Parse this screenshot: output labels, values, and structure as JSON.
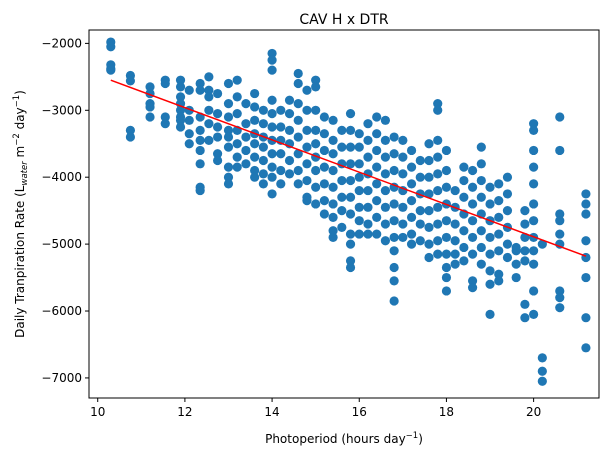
{
  "chart_data": {
    "type": "scatter",
    "title": "CAV H x DTR",
    "xlabel": {
      "main": "Photoperiod (hours day",
      "sup": "−1",
      "tail": ")"
    },
    "ylabel": {
      "part1": "Daily Tranpiration Rate (L",
      "sub": "water",
      "part2": " m",
      "sup1": "−2",
      "part3": " day",
      "sup2": "−1",
      "part4": ")"
    },
    "xlim": [
      9.8,
      21.5
    ],
    "ylim": [
      -7300,
      -1800
    ],
    "xticks": [
      10,
      12,
      14,
      16,
      18,
      20
    ],
    "xtick_labels": [
      "10",
      "12",
      "14",
      "16",
      "18",
      "20"
    ],
    "yticks": [
      -7000,
      -6000,
      -5000,
      -4000,
      -3000,
      -2000
    ],
    "ytick_labels": [
      "−7000",
      "−6000",
      "−5000",
      "−4000",
      "−3000",
      "−2000"
    ],
    "grid": false,
    "legend": "none",
    "point_color": "#1f77b4",
    "line_color": "#ff0000",
    "fit_line": {
      "x": [
        10.3,
        21.2
      ],
      "y": [
        -2550,
        -5180
      ]
    },
    "points": [
      [
        10.3,
        -1980
      ],
      [
        10.3,
        -2050
      ],
      [
        10.3,
        -2320
      ],
      [
        10.3,
        -2380
      ],
      [
        10.3,
        -2400
      ],
      [
        10.75,
        -2480
      ],
      [
        10.75,
        -2560
      ],
      [
        10.75,
        -3300
      ],
      [
        10.75,
        -3400
      ],
      [
        11.2,
        -2650
      ],
      [
        11.2,
        -2750
      ],
      [
        11.2,
        -2900
      ],
      [
        11.2,
        -2950
      ],
      [
        11.2,
        -3100
      ],
      [
        11.55,
        -2550
      ],
      [
        11.55,
        -2600
      ],
      [
        11.55,
        -3100
      ],
      [
        11.55,
        -3200
      ],
      [
        11.9,
        -2550
      ],
      [
        11.9,
        -2650
      ],
      [
        11.9,
        -2800
      ],
      [
        11.9,
        -2900
      ],
      [
        11.9,
        -3000
      ],
      [
        11.9,
        -3100
      ],
      [
        11.9,
        -3150
      ],
      [
        11.9,
        -3250
      ],
      [
        12.1,
        -2700
      ],
      [
        12.1,
        -3000
      ],
      [
        12.1,
        -3150
      ],
      [
        12.1,
        -3350
      ],
      [
        12.1,
        -3500
      ],
      [
        12.35,
        -2600
      ],
      [
        12.35,
        -2700
      ],
      [
        12.35,
        -3100
      ],
      [
        12.35,
        -3300
      ],
      [
        12.35,
        -3450
      ],
      [
        12.35,
        -3600
      ],
      [
        12.35,
        -3800
      ],
      [
        12.35,
        -4150
      ],
      [
        12.35,
        -4200
      ],
      [
        12.55,
        -2500
      ],
      [
        12.55,
        -2700
      ],
      [
        12.55,
        -2800
      ],
      [
        12.55,
        -3000
      ],
      [
        12.55,
        -3200
      ],
      [
        12.55,
        -3450
      ],
      [
        12.75,
        -2750
      ],
      [
        12.75,
        -3050
      ],
      [
        12.75,
        -3250
      ],
      [
        12.75,
        -3400
      ],
      [
        12.75,
        -3650
      ],
      [
        12.75,
        -3750
      ],
      [
        13.0,
        -2600
      ],
      [
        13.0,
        -2900
      ],
      [
        13.0,
        -3100
      ],
      [
        13.0,
        -3300
      ],
      [
        13.0,
        -3400
      ],
      [
        13.0,
        -3550
      ],
      [
        13.0,
        -3850
      ],
      [
        13.0,
        -4000
      ],
      [
        13.0,
        -4100
      ],
      [
        13.2,
        -2550
      ],
      [
        13.2,
        -2800
      ],
      [
        13.2,
        -3050
      ],
      [
        13.2,
        -3300
      ],
      [
        13.2,
        -3500
      ],
      [
        13.2,
        -3700
      ],
      [
        13.2,
        -3850
      ],
      [
        13.4,
        -2900
      ],
      [
        13.4,
        -3200
      ],
      [
        13.4,
        -3400
      ],
      [
        13.4,
        -3600
      ],
      [
        13.4,
        -3800
      ],
      [
        13.6,
        -2750
      ],
      [
        13.6,
        -2950
      ],
      [
        13.6,
        -3150
      ],
      [
        13.6,
        -3350
      ],
      [
        13.6,
        -3500
      ],
      [
        13.6,
        -3700
      ],
      [
        13.6,
        -3900
      ],
      [
        13.6,
        -4000
      ],
      [
        13.8,
        -3000
      ],
      [
        13.8,
        -3200
      ],
      [
        13.8,
        -3400
      ],
      [
        13.8,
        -3550
      ],
      [
        13.8,
        -3750
      ],
      [
        13.8,
        -3950
      ],
      [
        13.8,
        -4100
      ],
      [
        14.0,
        -2150
      ],
      [
        14.0,
        -2250
      ],
      [
        14.0,
        -2400
      ],
      [
        14.0,
        -2850
      ],
      [
        14.0,
        -3050
      ],
      [
        14.0,
        -3250
      ],
      [
        14.0,
        -3450
      ],
      [
        14.0,
        -3650
      ],
      [
        14.0,
        -3850
      ],
      [
        14.0,
        -4000
      ],
      [
        14.0,
        -4250
      ],
      [
        14.2,
        -3000
      ],
      [
        14.2,
        -3250
      ],
      [
        14.2,
        -3450
      ],
      [
        14.2,
        -3650
      ],
      [
        14.2,
        -3900
      ],
      [
        14.2,
        -4100
      ],
      [
        14.4,
        -2850
      ],
      [
        14.4,
        -3050
      ],
      [
        14.4,
        -3300
      ],
      [
        14.4,
        -3500
      ],
      [
        14.4,
        -3750
      ],
      [
        14.4,
        -3950
      ],
      [
        14.6,
        -2450
      ],
      [
        14.6,
        -2600
      ],
      [
        14.6,
        -2900
      ],
      [
        14.6,
        -3150
      ],
      [
        14.6,
        -3400
      ],
      [
        14.6,
        -3650
      ],
      [
        14.6,
        -3900
      ],
      [
        14.6,
        -4100
      ],
      [
        14.8,
        -2700
      ],
      [
        14.8,
        -3000
      ],
      [
        14.8,
        -3300
      ],
      [
        14.8,
        -3550
      ],
      [
        14.8,
        -3800
      ],
      [
        14.8,
        -4050
      ],
      [
        14.8,
        -4300
      ],
      [
        14.8,
        -4350
      ],
      [
        15.0,
        -2550
      ],
      [
        15.0,
        -2650
      ],
      [
        15.0,
        -3000
      ],
      [
        15.0,
        -3300
      ],
      [
        15.0,
        -3500
      ],
      [
        15.0,
        -3700
      ],
      [
        15.0,
        -3900
      ],
      [
        15.0,
        -4150
      ],
      [
        15.0,
        -4400
      ],
      [
        15.2,
        -3100
      ],
      [
        15.2,
        -3350
      ],
      [
        15.2,
        -3600
      ],
      [
        15.2,
        -3850
      ],
      [
        15.2,
        -4100
      ],
      [
        15.2,
        -4350
      ],
      [
        15.2,
        -4550
      ],
      [
        15.4,
        -3150
      ],
      [
        15.4,
        -3450
      ],
      [
        15.4,
        -3650
      ],
      [
        15.4,
        -3900
      ],
      [
        15.4,
        -4150
      ],
      [
        15.4,
        -4400
      ],
      [
        15.4,
        -4600
      ],
      [
        15.4,
        -4800
      ],
      [
        15.4,
        -4900
      ],
      [
        15.6,
        -3300
      ],
      [
        15.6,
        -3550
      ],
      [
        15.6,
        -3800
      ],
      [
        15.6,
        -4050
      ],
      [
        15.6,
        -4300
      ],
      [
        15.6,
        -4500
      ],
      [
        15.6,
        -4750
      ],
      [
        15.8,
        -3050
      ],
      [
        15.8,
        -3300
      ],
      [
        15.8,
        -3550
      ],
      [
        15.8,
        -3800
      ],
      [
        15.8,
        -4050
      ],
      [
        15.8,
        -4300
      ],
      [
        15.8,
        -4550
      ],
      [
        15.8,
        -4850
      ],
      [
        15.8,
        -5000
      ],
      [
        15.8,
        -5250
      ],
      [
        15.8,
        -5350
      ],
      [
        16.0,
        -3350
      ],
      [
        16.0,
        -3550
      ],
      [
        16.0,
        -3800
      ],
      [
        16.0,
        -4000
      ],
      [
        16.0,
        -4200
      ],
      [
        16.0,
        -4450
      ],
      [
        16.0,
        -4650
      ],
      [
        16.0,
        -4850
      ],
      [
        16.2,
        -3200
      ],
      [
        16.2,
        -3450
      ],
      [
        16.2,
        -3700
      ],
      [
        16.2,
        -3950
      ],
      [
        16.2,
        -4200
      ],
      [
        16.2,
        -4450
      ],
      [
        16.2,
        -4700
      ],
      [
        16.2,
        -4850
      ],
      [
        16.4,
        -3100
      ],
      [
        16.4,
        -3350
      ],
      [
        16.4,
        -3600
      ],
      [
        16.4,
        -3850
      ],
      [
        16.4,
        -4100
      ],
      [
        16.4,
        -4350
      ],
      [
        16.4,
        -4600
      ],
      [
        16.4,
        -4850
      ],
      [
        16.6,
        -3150
      ],
      [
        16.6,
        -3450
      ],
      [
        16.6,
        -3700
      ],
      [
        16.6,
        -3950
      ],
      [
        16.6,
        -4200
      ],
      [
        16.6,
        -4450
      ],
      [
        16.6,
        -4700
      ],
      [
        16.6,
        -4950
      ],
      [
        16.8,
        -3400
      ],
      [
        16.8,
        -3650
      ],
      [
        16.8,
        -3900
      ],
      [
        16.8,
        -4150
      ],
      [
        16.8,
        -4400
      ],
      [
        16.8,
        -4650
      ],
      [
        16.8,
        -4900
      ],
      [
        16.8,
        -5100
      ],
      [
        16.8,
        -5350
      ],
      [
        16.8,
        -5550
      ],
      [
        16.8,
        -5850
      ],
      [
        17.0,
        -3450
      ],
      [
        17.0,
        -3700
      ],
      [
        17.0,
        -3950
      ],
      [
        17.0,
        -4200
      ],
      [
        17.0,
        -4450
      ],
      [
        17.0,
        -4700
      ],
      [
        17.0,
        -4900
      ],
      [
        17.2,
        -3600
      ],
      [
        17.2,
        -3850
      ],
      [
        17.2,
        -4100
      ],
      [
        17.2,
        -4350
      ],
      [
        17.2,
        -4600
      ],
      [
        17.2,
        -4850
      ],
      [
        17.2,
        -5000
      ],
      [
        17.4,
        -3750
      ],
      [
        17.4,
        -4000
      ],
      [
        17.4,
        -4250
      ],
      [
        17.4,
        -4500
      ],
      [
        17.4,
        -4700
      ],
      [
        17.4,
        -4950
      ],
      [
        17.6,
        -3500
      ],
      [
        17.6,
        -3750
      ],
      [
        17.6,
        -4000
      ],
      [
        17.6,
        -4250
      ],
      [
        17.6,
        -4500
      ],
      [
        17.6,
        -4750
      ],
      [
        17.6,
        -5000
      ],
      [
        17.6,
        -5200
      ],
      [
        17.8,
        -2900
      ],
      [
        17.8,
        -3000
      ],
      [
        17.8,
        -3450
      ],
      [
        17.8,
        -3700
      ],
      [
        17.8,
        -3950
      ],
      [
        17.8,
        -4200
      ],
      [
        17.8,
        -4450
      ],
      [
        17.8,
        -4700
      ],
      [
        17.8,
        -4950
      ],
      [
        17.8,
        -5150
      ],
      [
        18.0,
        -3600
      ],
      [
        18.0,
        -3900
      ],
      [
        18.0,
        -4150
      ],
      [
        18.0,
        -4400
      ],
      [
        18.0,
        -4650
      ],
      [
        18.0,
        -4900
      ],
      [
        18.0,
        -5150
      ],
      [
        18.0,
        -5350
      ],
      [
        18.0,
        -5500
      ],
      [
        18.0,
        -5700
      ],
      [
        18.2,
        -4200
      ],
      [
        18.2,
        -4450
      ],
      [
        18.2,
        -4700
      ],
      [
        18.2,
        -4950
      ],
      [
        18.2,
        -5150
      ],
      [
        18.2,
        -5300
      ],
      [
        18.4,
        -3850
      ],
      [
        18.4,
        -4050
      ],
      [
        18.4,
        -4300
      ],
      [
        18.4,
        -4550
      ],
      [
        18.4,
        -4800
      ],
      [
        18.4,
        -5050
      ],
      [
        18.4,
        -5250
      ],
      [
        18.6,
        -3900
      ],
      [
        18.6,
        -4150
      ],
      [
        18.6,
        -4400
      ],
      [
        18.6,
        -4650
      ],
      [
        18.6,
        -4900
      ],
      [
        18.6,
        -5150
      ],
      [
        18.6,
        -5550
      ],
      [
        18.6,
        -5650
      ],
      [
        18.8,
        -3550
      ],
      [
        18.8,
        -3800
      ],
      [
        18.8,
        -4050
      ],
      [
        18.8,
        -4300
      ],
      [
        18.8,
        -4550
      ],
      [
        18.8,
        -4800
      ],
      [
        18.8,
        -5050
      ],
      [
        18.8,
        -5300
      ],
      [
        19.0,
        -4150
      ],
      [
        19.0,
        -4400
      ],
      [
        19.0,
        -4650
      ],
      [
        19.0,
        -4900
      ],
      [
        19.0,
        -5150
      ],
      [
        19.0,
        -5400
      ],
      [
        19.0,
        -5600
      ],
      [
        19.0,
        -6050
      ],
      [
        19.2,
        -4100
      ],
      [
        19.2,
        -4350
      ],
      [
        19.2,
        -4600
      ],
      [
        19.2,
        -4850
      ],
      [
        19.2,
        -5100
      ],
      [
        19.2,
        -5450
      ],
      [
        19.2,
        -5550
      ],
      [
        19.4,
        -4000
      ],
      [
        19.4,
        -4250
      ],
      [
        19.4,
        -4500
      ],
      [
        19.4,
        -4750
      ],
      [
        19.4,
        -5000
      ],
      [
        19.4,
        -5200
      ],
      [
        19.6,
        -5050
      ],
      [
        19.6,
        -5100
      ],
      [
        19.6,
        -5300
      ],
      [
        19.6,
        -5500
      ],
      [
        19.8,
        -4500
      ],
      [
        19.8,
        -4700
      ],
      [
        19.8,
        -4900
      ],
      [
        19.8,
        -5100
      ],
      [
        19.8,
        -5250
      ],
      [
        19.8,
        -5900
      ],
      [
        19.8,
        -6100
      ],
      [
        20.0,
        -3200
      ],
      [
        20.0,
        -3300
      ],
      [
        20.0,
        -3600
      ],
      [
        20.0,
        -3850
      ],
      [
        20.0,
        -4100
      ],
      [
        20.0,
        -4400
      ],
      [
        20.0,
        -4650
      ],
      [
        20.0,
        -4900
      ],
      [
        20.0,
        -5100
      ],
      [
        20.0,
        -5300
      ],
      [
        20.0,
        -5700
      ],
      [
        20.0,
        -6050
      ],
      [
        20.2,
        -5000
      ],
      [
        20.2,
        -6700
      ],
      [
        20.2,
        -6900
      ],
      [
        20.2,
        -7050
      ],
      [
        20.6,
        -3100
      ],
      [
        20.6,
        -3600
      ],
      [
        20.6,
        -4550
      ],
      [
        20.6,
        -4650
      ],
      [
        20.6,
        -4850
      ],
      [
        20.6,
        -5000
      ],
      [
        20.6,
        -5700
      ],
      [
        20.6,
        -5800
      ],
      [
        20.6,
        -5950
      ],
      [
        21.2,
        -4250
      ],
      [
        21.2,
        -4400
      ],
      [
        21.2,
        -4550
      ],
      [
        21.2,
        -4950
      ],
      [
        21.2,
        -5200
      ],
      [
        21.2,
        -5500
      ],
      [
        21.2,
        -6100
      ],
      [
        21.2,
        -6550
      ]
    ]
  }
}
